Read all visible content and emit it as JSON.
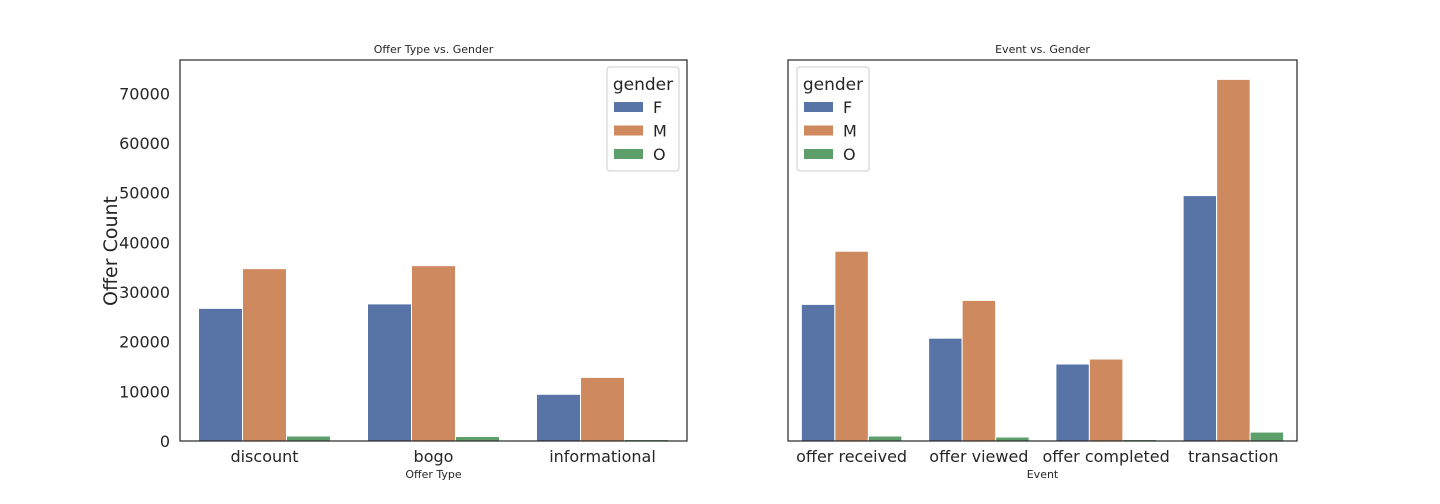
{
  "colors": {
    "F": "#5874a7",
    "M": "#cf895e",
    "O": "#5d9f6b",
    "axis": "#262626"
  },
  "legend": {
    "title": "gender",
    "labels": [
      "F",
      "M",
      "O"
    ],
    "colors": [
      "#5874a7",
      "#cf895e",
      "#5d9f6b"
    ]
  },
  "shared_ylabel": "Offer Count",
  "chart_data": [
    {
      "type": "bar",
      "title": "Offer Type vs. Gender",
      "xlabel": "Offer Type",
      "ylabel": "Offer Count",
      "categories": [
        "discount",
        "bogo",
        "informational"
      ],
      "series": [
        {
          "name": "F",
          "values": [
            26700,
            27600,
            9400
          ]
        },
        {
          "name": "M",
          "values": [
            34700,
            35300,
            12800
          ]
        },
        {
          "name": "O",
          "values": [
            1000,
            900,
            300
          ]
        }
      ],
      "ylim": [
        0,
        76700
      ],
      "yticks": [
        0,
        10000,
        20000,
        30000,
        40000,
        50000,
        60000,
        70000
      ],
      "grid": false,
      "legend_position": "top-right"
    },
    {
      "type": "bar",
      "title": "Event vs. Gender",
      "xlabel": "Event",
      "ylabel": "",
      "categories": [
        "offer received",
        "offer viewed",
        "offer completed",
        "transaction"
      ],
      "series": [
        {
          "name": "F",
          "values": [
            27500,
            20700,
            15500,
            49400
          ]
        },
        {
          "name": "M",
          "values": [
            38200,
            28300,
            16500,
            72800
          ]
        },
        {
          "name": "O",
          "values": [
            1000,
            800,
            300,
            1800
          ]
        }
      ],
      "ylim": [
        0,
        76700
      ],
      "yticks": [],
      "grid": false,
      "legend_position": "top-left"
    }
  ]
}
